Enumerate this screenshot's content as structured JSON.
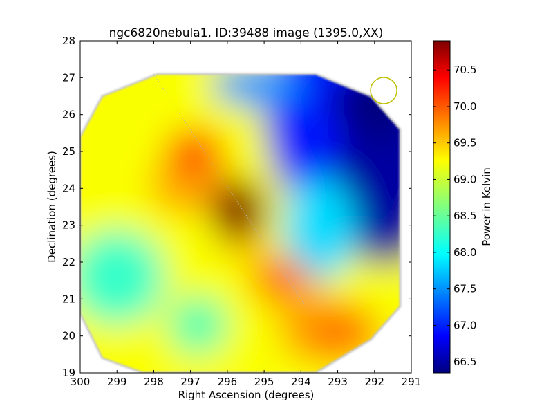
{
  "chart_data": {
    "type": "heatmap",
    "title": "ngc6820nebula1, ID:39488 image (1395.0,XX)",
    "xlabel": "Right Ascension (degrees)",
    "ylabel": "Declination (degrees)",
    "xlim": [
      300,
      291
    ],
    "ylim": [
      19,
      28
    ],
    "x_ticks": [
      "300",
      "299",
      "298",
      "297",
      "296",
      "295",
      "294",
      "293",
      "292",
      "291"
    ],
    "y_ticks": [
      "19",
      "20",
      "21",
      "22",
      "23",
      "24",
      "25",
      "26",
      "27",
      "28"
    ],
    "grid": false,
    "colorbar": {
      "label": "Power in Kelvin",
      "colormap": "jet",
      "range": [
        66.35,
        70.9
      ],
      "ticks": [
        "66.5",
        "67.0",
        "67.5",
        "68.0",
        "68.5",
        "69.0",
        "69.5",
        "70.0",
        "70.5"
      ],
      "tick_values": [
        66.5,
        67.0,
        67.5,
        68.0,
        68.5,
        69.0,
        69.5,
        70.0,
        70.5
      ]
    },
    "field_footprint_deg": [
      [
        297.9,
        27.1
      ],
      [
        293.6,
        27.1
      ],
      [
        292.1,
        26.5
      ],
      [
        291.3,
        25.6
      ],
      [
        291.3,
        20.8
      ],
      [
        292.1,
        19.9
      ],
      [
        293.6,
        19.0
      ],
      [
        298.3,
        19.0
      ],
      [
        299.4,
        19.4
      ],
      [
        300.0,
        20.6
      ],
      [
        300.0,
        25.4
      ],
      [
        299.4,
        26.5
      ]
    ],
    "emission_peaks": [
      {
        "ra": 295.7,
        "dec": 23.4,
        "value": 70.9
      },
      {
        "ra": 296.9,
        "dec": 25.0,
        "value": 70.0
      },
      {
        "ra": 294.6,
        "dec": 21.6,
        "value": 69.8
      },
      {
        "ra": 293.0,
        "dec": 20.1,
        "value": 69.8
      }
    ],
    "minimum_region": {
      "ra": 291.8,
      "dec": 25.8,
      "value": 66.4
    },
    "galactic_plane_line": [
      [
        298.0,
        27.1
      ],
      [
        293.8,
        20.7
      ]
    ],
    "beam_marker": {
      "ra": 291.75,
      "dec": 26.65,
      "color": "#bfbf00"
    }
  }
}
